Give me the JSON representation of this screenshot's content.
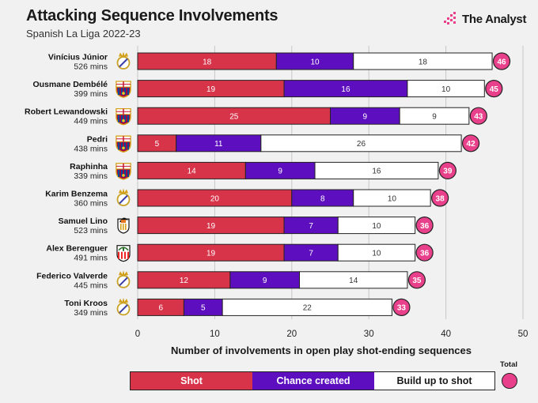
{
  "header": {
    "title": "Attacking Sequence Involvements",
    "subtitle": "Spanish La Liga 2022-23",
    "brand": "The Analyst"
  },
  "legend": {
    "shot": "Shot",
    "chance": "Chance created",
    "build": "Build up to shot",
    "total": "Total"
  },
  "colors": {
    "shot": "#d7344a",
    "chance": "#5d0fbf",
    "build": "#ffffff",
    "total": "#e8408a",
    "background": "#f1f1f1"
  },
  "chart_data": {
    "type": "bar",
    "orientation": "horizontal",
    "stacked": true,
    "title": "Attacking Sequence Involvements",
    "subtitle": "Spanish La Liga 2022-23",
    "xlabel": "Number of involvements in open play shot-ending sequences",
    "xlim": [
      0,
      50
    ],
    "xticks": [
      0,
      10,
      20,
      30,
      40,
      50
    ],
    "players": [
      {
        "name": "Vinícius Júnior",
        "mins": "526 mins",
        "club": "real-madrid",
        "total": 46
      },
      {
        "name": "Ousmane Dembélé",
        "mins": "399 mins",
        "club": "barcelona",
        "total": 45
      },
      {
        "name": "Robert Lewandowski",
        "mins": "449 mins",
        "club": "barcelona",
        "total": 43
      },
      {
        "name": "Pedri",
        "mins": "438 mins",
        "club": "barcelona",
        "total": 42
      },
      {
        "name": "Raphinha",
        "mins": "339 mins",
        "club": "barcelona",
        "total": 39
      },
      {
        "name": "Karim Benzema",
        "mins": "360 mins",
        "club": "real-madrid",
        "total": 38
      },
      {
        "name": "Samuel Lino",
        "mins": "523 mins",
        "club": "valencia",
        "total": 36
      },
      {
        "name": "Alex Berenguer",
        "mins": "491 mins",
        "club": "athletic",
        "total": 36
      },
      {
        "name": "Federico Valverde",
        "mins": "445 mins",
        "club": "real-madrid",
        "total": 35
      },
      {
        "name": "Toni Kroos",
        "mins": "349 mins",
        "club": "real-madrid",
        "total": 33
      }
    ],
    "series": [
      {
        "name": "Shot",
        "values": [
          18,
          19,
          25,
          5,
          14,
          20,
          19,
          19,
          12,
          6
        ]
      },
      {
        "name": "Chance created",
        "values": [
          10,
          16,
          9,
          11,
          9,
          8,
          7,
          7,
          9,
          5
        ]
      },
      {
        "name": "Build up to shot",
        "values": [
          18,
          10,
          9,
          26,
          16,
          10,
          10,
          10,
          14,
          22
        ]
      }
    ]
  }
}
